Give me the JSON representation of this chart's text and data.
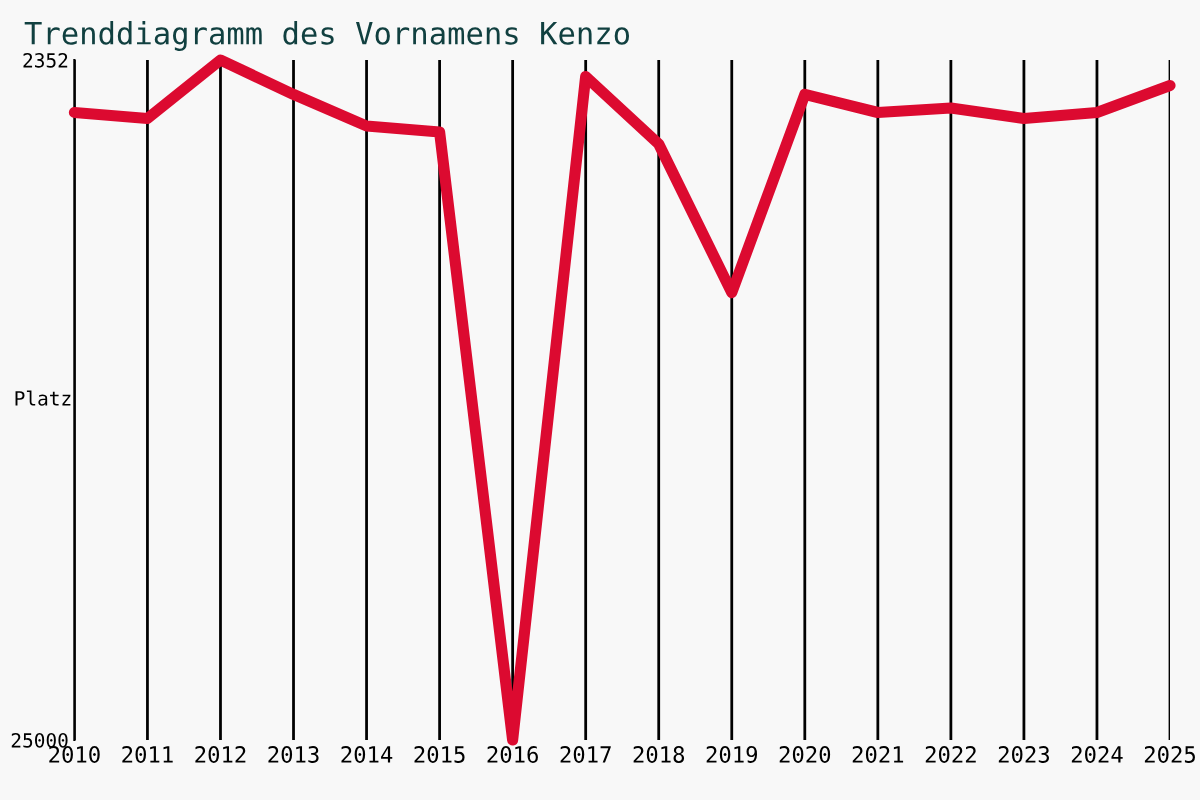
{
  "chart_data": {
    "type": "line",
    "title": "Trenddiagramm des Vornamens Kenzo",
    "ylabel": "Platz",
    "x": [
      2010,
      2011,
      2012,
      2013,
      2014,
      2015,
      2016,
      2017,
      2018,
      2019,
      2020,
      2021,
      2022,
      2023,
      2024,
      2025
    ],
    "series": [
      {
        "color": "#dc0a30",
        "values": [
          4100,
          4300,
          2352,
          3500,
          4550,
          4750,
          25000,
          2900,
          5150,
          10100,
          3500,
          4100,
          3950,
          4300,
          4100,
          3200
        ]
      }
    ],
    "xlim": [
      2010,
      2025
    ],
    "xticks": [
      2010,
      2011,
      2012,
      2013,
      2014,
      2015,
      2016,
      2017,
      2018,
      2019,
      2020,
      2021,
      2022,
      2023,
      2024,
      2025
    ],
    "ylim": [
      25000,
      2352
    ],
    "yticks": [
      2352,
      25000
    ],
    "grid": "x",
    "marker": "none",
    "line_style": "solid"
  }
}
